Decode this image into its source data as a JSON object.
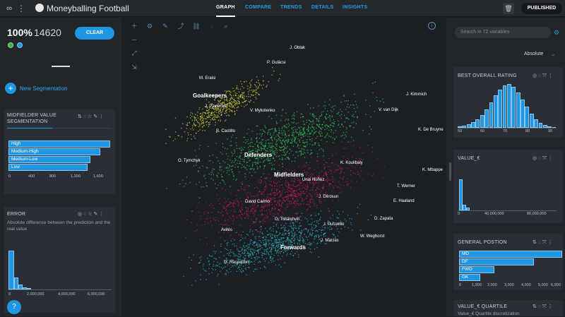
{
  "app": {
    "title": "Moneyballing Football"
  },
  "nav": {
    "tabs": [
      "GRAPH",
      "COMPARE",
      "TRENDS",
      "DETAILS",
      "INSIGHTS"
    ],
    "active": "GRAPH"
  },
  "topbar": {
    "published_label": "PUBLISHED"
  },
  "summary": {
    "percent": "100%",
    "count": "14620",
    "clear_label": "CLEAR"
  },
  "left": {
    "new_segmentation_label": "New Segmentation",
    "segmentation_card": {
      "title": "MIDFIELDER VALUE SEGMENTATION",
      "bars": [
        {
          "label": "High",
          "value": 1690
        },
        {
          "label": "Medium-High",
          "value": 1620
        },
        {
          "label": "Medium-Low",
          "value": 1440
        },
        {
          "label": "Low",
          "value": 1400
        }
      ],
      "ticks": [
        "0",
        "400",
        "800",
        "1,200",
        "1,600"
      ]
    },
    "error_card": {
      "title": "ERROR",
      "description": "Absolute difference between the prediction and the real value",
      "ticks": [
        "0",
        "2,000,000",
        "4,000,000",
        "6,000,000"
      ]
    },
    "help_label": "?"
  },
  "graph": {
    "clusters": [
      {
        "label": "Goalkeepers",
        "color": "#d9d92a"
      },
      {
        "label": "Defenders",
        "color": "#2fcf5f"
      },
      {
        "label": "Midfielders",
        "color": "#d21a4e"
      },
      {
        "label": "Forwards",
        "color": "#28b8c8"
      }
    ],
    "players": [
      "J. Oblak",
      "P. Gulácsi",
      "M. Eraisi",
      "J. Pavlenka",
      "V. Mykolenko",
      "B. Castillo",
      "O. Tymchyk",
      "J. Kimmich",
      "V. van Dijk",
      "K. De Bruyne",
      "K. Mbappe",
      "K. Koulibaly",
      "Unai Núñez",
      "T. Werner",
      "E. Haaland",
      "J. Dilrosun",
      "David Carmo",
      "D. Zapata",
      "G. Tsitaishvili",
      "I. Pussetto",
      "Avilés",
      "W. Weghorst",
      "J. Macías",
      "G. Raspadori"
    ]
  },
  "right": {
    "search_placeholder": "Search in 72 variables",
    "mode": "Absolute",
    "best_rating_card": {
      "title": "BEST OVERALL RATING",
      "ticks": [
        "50",
        "60",
        "70",
        "80",
        "90"
      ]
    },
    "value_card": {
      "title": "VALUE_€",
      "ticks": [
        "0",
        "40,000,000",
        "80,000,000"
      ]
    },
    "position_card": {
      "title": "GENERAL POSTION",
      "bars": [
        {
          "label": "MD",
          "value": 6200
        },
        {
          "label": "DF",
          "value": 5400
        },
        {
          "label": "FWD",
          "value": 2500
        },
        {
          "label": "GK",
          "value": 1500
        }
      ],
      "ticks": [
        "0",
        "1,000",
        "2,000",
        "3,000",
        "4,000",
        "5,000",
        "6,000"
      ]
    },
    "quartile_card": {
      "title": "VALUE_€ QUARTILE",
      "subtitle": "Value_€ Quartile discretization"
    }
  }
}
